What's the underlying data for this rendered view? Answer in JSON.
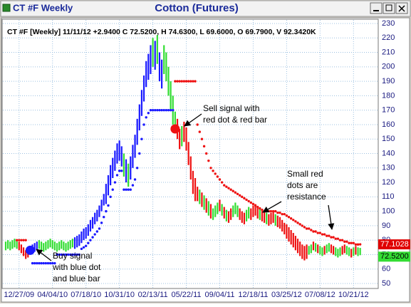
{
  "chart_data": {
    "type": "range_bar",
    "window_title": "CT #F Weekly",
    "title": "Cotton (Futures)",
    "subtitle": "CT #F [Weekly] 11/11/12 +2.9400 C 72.5200, H 74.6300, L 69.6000, O 69.7900, V 92.3420K",
    "categories": [
      null,
      null,
      null,
      null,
      null,
      null,
      "12/27/09",
      null,
      null,
      null,
      null,
      null,
      null,
      null,
      null,
      null,
      null,
      null,
      null,
      null,
      null,
      "04/04/10",
      null,
      null,
      null,
      null,
      null,
      null,
      null,
      null,
      null,
      null,
      null,
      null,
      null,
      null,
      "07/18/10",
      null,
      null,
      null,
      null,
      null,
      null,
      null,
      null,
      null,
      null,
      null,
      null,
      null,
      null,
      "10/31/10",
      null,
      null,
      null,
      null,
      null,
      null,
      null,
      null,
      null,
      null,
      null,
      null,
      null,
      null,
      "02/13/11",
      null,
      null,
      null,
      null,
      null,
      null,
      null,
      null,
      null,
      null,
      null,
      null,
      null,
      null,
      "05/22/11",
      null,
      null,
      null,
      null,
      null,
      null,
      null,
      null,
      null,
      null,
      null,
      null,
      null,
      null,
      "09/04/11",
      null,
      null,
      null,
      null,
      null,
      null,
      null,
      null,
      null,
      null,
      null,
      null,
      null,
      null,
      "12/18/11",
      null,
      null,
      null,
      null,
      null,
      null,
      null,
      null,
      null,
      null,
      null,
      null,
      null,
      null,
      "03/25/12",
      null,
      null,
      null,
      null,
      null,
      null,
      null,
      null,
      null,
      null,
      null,
      null,
      null,
      null,
      "07/08/12",
      null,
      null,
      null,
      null,
      null,
      null,
      null,
      null,
      null,
      null,
      null,
      null,
      null,
      null,
      "10/21/12",
      null,
      null,
      null
    ],
    "low": [
      73,
      74,
      73,
      74,
      75,
      74,
      73,
      71,
      69,
      67,
      68,
      70,
      71,
      72,
      73,
      74,
      73,
      72,
      73,
      74,
      75,
      74,
      73,
      72,
      73,
      74,
      73,
      72,
      73,
      74,
      75,
      74,
      75,
      76,
      78,
      80,
      81,
      83,
      86,
      88,
      91,
      93,
      96,
      100,
      104,
      105,
      111,
      118,
      123,
      128,
      133,
      135,
      131,
      124,
      120,
      117,
      122,
      130,
      137,
      146,
      156,
      166,
      176,
      186,
      191,
      195,
      200,
      198,
      202,
      190,
      185,
      195,
      190,
      180,
      170,
      160,
      155,
      150,
      143,
      145,
      148,
      142,
      132,
      122,
      112,
      107,
      107,
      105,
      103,
      101,
      99,
      97,
      95,
      94,
      96,
      98,
      100,
      97,
      95,
      93,
      92,
      94,
      96,
      98,
      96,
      94,
      92,
      91,
      93,
      95,
      94,
      96,
      97,
      95,
      94,
      93,
      92,
      91,
      90,
      91,
      92,
      90,
      89,
      88,
      86,
      84,
      81,
      79,
      77,
      75,
      73,
      71,
      69,
      67,
      66,
      67,
      70,
      71,
      73,
      72,
      71,
      70,
      69,
      70,
      71,
      72,
      71,
      70,
      69,
      68,
      69,
      70,
      71,
      70,
      69,
      68,
      69,
      70,
      69,
      69.6
    ],
    "high": [
      79,
      80,
      79,
      80,
      81,
      80,
      79,
      77,
      75,
      73,
      74,
      76,
      77,
      78,
      79,
      80,
      79,
      78,
      79,
      80,
      81,
      80,
      79,
      78,
      79,
      80,
      79,
      78,
      79,
      80,
      81,
      82,
      83,
      84,
      86,
      88,
      89,
      91,
      94,
      96,
      99,
      101,
      104,
      108,
      112,
      119,
      125,
      132,
      137,
      142,
      147,
      149,
      145,
      140,
      136,
      133,
      138,
      146,
      153,
      164,
      174,
      184,
      194,
      204,
      209,
      215,
      220,
      218,
      222,
      210,
      205,
      215,
      210,
      200,
      190,
      180,
      169,
      164,
      157,
      159,
      162,
      158,
      148,
      138,
      128,
      123,
      117,
      115,
      113,
      111,
      109,
      107,
      105,
      102,
      104,
      106,
      108,
      105,
      103,
      101,
      100,
      102,
      104,
      106,
      104,
      102,
      100,
      99,
      101,
      103,
      102,
      104,
      105,
      103,
      102,
      101,
      100,
      99,
      98,
      99,
      100,
      98,
      97,
      96,
      94,
      92,
      91,
      89,
      87,
      85,
      83,
      81,
      79,
      77,
      76,
      77,
      76,
      77,
      79,
      78,
      77,
      76,
      75,
      76,
      77,
      78,
      77,
      76,
      75,
      74,
      75,
      76,
      77,
      76,
      75,
      74,
      75,
      76,
      75,
      74.63
    ],
    "bar_colors": [
      "gggggg",
      "rrrrr",
      "b",
      "bbbgggggggggggggggg",
      "bbbbbbbbbbbbbb",
      "bbbbbbbb",
      "gbgbbb",
      "bbbbbb",
      "bgbgbb",
      "ggggg",
      "grrgr",
      "rrrrr",
      "rgrgrgr",
      "gggrgrgrrgggrrrggr",
      "rrrgrrgrrrgrrrr",
      "rrrrrrrrrr",
      "ggrgrggrggrrgggrrggrgrgg"
    ],
    "palette": {
      "g": "#33dd33",
      "r": "#ee1111",
      "b": "#1a1aff"
    },
    "dots": [
      null,
      null,
      null,
      null,
      null,
      80,
      80,
      80,
      80,
      80,
      null,
      null,
      64,
      64,
      64,
      64,
      64,
      64,
      64,
      64,
      64,
      64,
      64,
      70,
      70,
      70,
      70,
      70,
      70,
      70,
      70,
      70,
      70,
      70,
      74,
      75,
      76,
      78,
      80,
      82,
      84,
      86,
      88,
      92,
      96,
      100,
      104,
      110,
      115,
      120,
      125,
      128,
      128,
      115,
      115,
      115,
      115,
      118,
      122,
      130,
      140,
      150,
      160,
      165,
      168,
      170,
      170,
      170,
      170,
      170,
      170,
      170,
      170,
      170,
      170,
      170,
      190,
      190,
      190,
      190,
      190,
      190,
      190,
      190,
      190,
      190,
      160,
      155,
      150,
      145,
      140,
      135,
      130,
      128,
      126,
      124,
      122,
      120,
      118,
      117,
      116,
      115,
      114,
      113,
      112,
      111,
      110,
      109,
      108,
      107,
      106,
      105,
      104,
      103,
      102,
      101,
      100,
      100,
      100,
      100,
      100,
      100,
      99,
      99,
      98,
      98,
      97,
      96,
      95,
      94,
      93,
      92,
      91,
      90,
      89,
      88,
      88,
      87,
      86,
      86,
      85,
      85,
      84,
      84,
      83,
      83,
      82,
      82,
      81,
      81,
      80,
      80,
      79,
      79,
      78,
      78,
      78,
      77,
      77,
      77.1028
    ],
    "signals": [
      {
        "index": 11,
        "value": 73,
        "color": "#1a1aff"
      },
      {
        "index": 76,
        "value": 157,
        "color": "#ee1111"
      }
    ],
    "price_tags": [
      {
        "value": 72.52,
        "label": "72.5200",
        "color": "#33dd33"
      },
      {
        "value": 77.1028,
        "color": "#e00000"
      }
    ],
    "annotations": [
      {
        "lines": [
          "Sell signal with",
          "red dot & red bar"
        ]
      },
      {
        "lines": [
          "Buy signal",
          "with blue dot",
          "and blue bar"
        ]
      },
      {
        "lines": [
          "Small red",
          "dots are",
          "resistance"
        ]
      }
    ],
    "ylim": [
      50,
      230
    ],
    "yticks": [
      50,
      60,
      70,
      80,
      90,
      100,
      110,
      120,
      130,
      140,
      150,
      160,
      170,
      180,
      190,
      200,
      210,
      220,
      230
    ],
    "grid": true
  }
}
